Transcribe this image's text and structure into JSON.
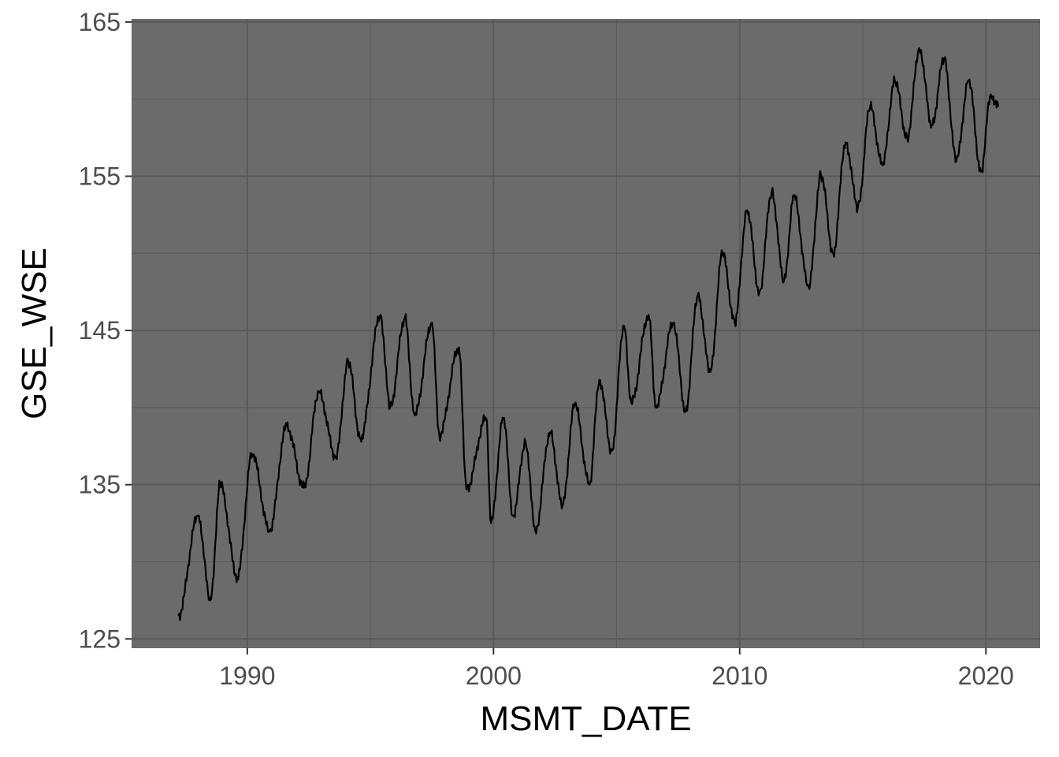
{
  "chart_data": {
    "type": "line",
    "title": "",
    "xlabel": "MSMT_DATE",
    "ylabel": "GSE_WSE",
    "xlim": [
      1985.3,
      2022.2
    ],
    "ylim": [
      124.4,
      165.2
    ],
    "x_ticks": [
      1990,
      2000,
      2010,
      2020
    ],
    "y_ticks": [
      125,
      135,
      145,
      155,
      165
    ],
    "grid": true,
    "legend": "none",
    "colors": {
      "panel": "#6b6b6b",
      "grid": "#595959",
      "line": "#000000",
      "tick_text": "#4d4d4d"
    },
    "series": [
      {
        "x": [
          1987.2,
          1988.0,
          1988.5,
          1988.9,
          1989.6,
          1990.2,
          1990.9,
          1991.6,
          1992.3,
          1992.9,
          1993.6,
          1994.1,
          1994.6,
          1995.4,
          1995.8,
          1996.4,
          1996.8,
          1997.5,
          1997.8,
          1998.6,
          1998.9,
          1999.7,
          1999.9,
          2000.4,
          2000.8,
          2001.3,
          2001.7,
          2002.3,
          2002.8,
          2003.3,
          2003.9,
          2004.3,
          2004.8,
          2005.3,
          2005.6,
          2006.3,
          2006.6,
          2007.3,
          2007.8,
          2008.3,
          2008.8,
          2009.3,
          2009.8,
          2010.3,
          2010.8,
          2011.3,
          2011.8,
          2012.2,
          2012.8,
          2013.3,
          2013.8,
          2014.3,
          2014.8,
          2015.3,
          2015.8,
          2016.3,
          2016.8,
          2017.3,
          2017.8,
          2018.3,
          2018.8,
          2019.3,
          2019.8,
          2020.2,
          2020.5
        ],
        "y": [
          126.5,
          133.0,
          127.5,
          135.0,
          129.0,
          137.0,
          132.0,
          138.8,
          134.8,
          141.0,
          136.8,
          143.0,
          138.0,
          146.0,
          140.0,
          145.8,
          139.5,
          145.5,
          138.2,
          143.9,
          134.7,
          139.3,
          132.5,
          139.3,
          133.0,
          137.8,
          132.0,
          138.4,
          133.6,
          140.2,
          135.0,
          141.8,
          137.2,
          145.3,
          140.3,
          146.0,
          140.0,
          145.5,
          139.8,
          147.3,
          142.3,
          150.0,
          145.5,
          152.8,
          147.5,
          154.0,
          148.2,
          153.7,
          147.8,
          155.1,
          150.0,
          157.2,
          153.0,
          159.5,
          155.7,
          161.2,
          157.5,
          163.3,
          158.3,
          162.6,
          156.0,
          161.2,
          155.3,
          160.3,
          159.5
        ]
      }
    ]
  }
}
